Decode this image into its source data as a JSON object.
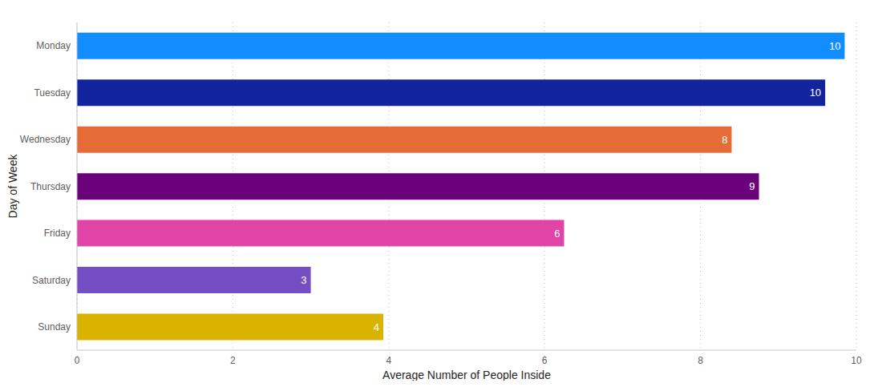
{
  "chart_data": {
    "type": "bar",
    "orientation": "horizontal",
    "categories": [
      "Monday",
      "Tuesday",
      "Wednesday",
      "Thursday",
      "Friday",
      "Saturday",
      "Sunday"
    ],
    "values": [
      9.85,
      9.6,
      8.4,
      8.75,
      6.25,
      3.0,
      3.93
    ],
    "value_labels": [
      "10",
      "10",
      "8",
      "9",
      "6",
      "3",
      "4"
    ],
    "colors": [
      "#118DFF",
      "#12239E",
      "#E66C37",
      "#6B007B",
      "#E044A7",
      "#744EC2",
      "#D9B300"
    ],
    "x_label": "Average Number of People Inside",
    "y_label": "Day of Week",
    "xlim": [
      0,
      10
    ],
    "xticks": [
      0,
      2,
      4,
      6,
      8,
      10
    ],
    "grid": true,
    "data_labels": true
  }
}
